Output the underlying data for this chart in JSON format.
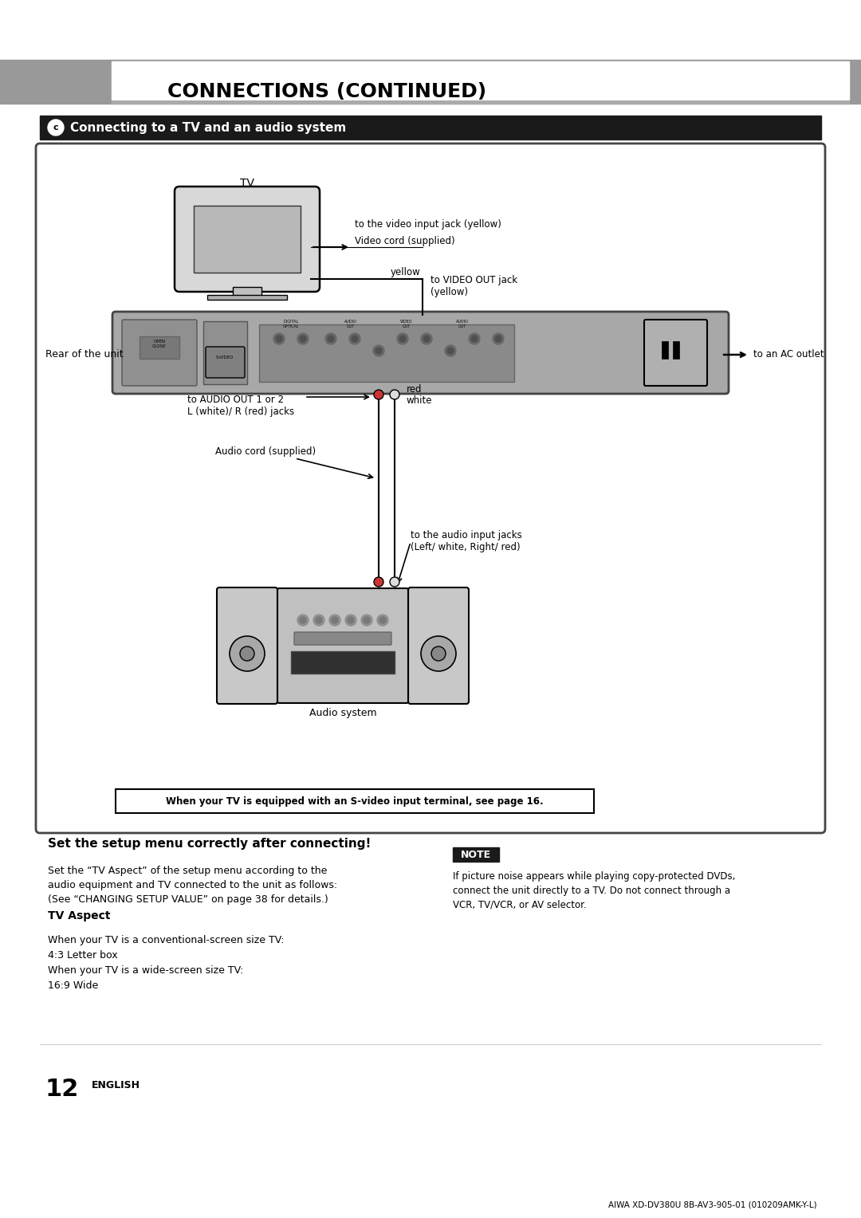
{
  "bg_color": "#ffffff",
  "header_bar_color": "#999999",
  "header_text": "CONNECTIONS (CONTINUED)",
  "section_bar_color": "#1a1a1a",
  "section_icon": "c",
  "section_title": "Connecting to a TV and an audio system",
  "section_title_color": "#ffffff",
  "page_number": "12",
  "page_number_label": "ENGLISH",
  "footer_text": "AIWA XD-DV380U 8B-AV3-905-01 (010209AMK-Y-L)",
  "note_box_color": "#1a1a1a",
  "note_text_color": "#ffffff",
  "note_label": "NOTE",
  "bottom_box_text": "When your TV is equipped with an S-video input terminal, see page 16.",
  "set_heading": "Set the setup menu correctly after connecting!",
  "set_body1": "Set the “TV Aspect” of the setup menu according to the\naudio equipment and TV connected to the unit as follows:\n(See “CHANGING SETUP VALUE” on page 38 for details.)",
  "tv_aspect_heading": "TV Aspect",
  "tv_aspect_body": "When your TV is a conventional-screen size TV:\n4:3 Letter box\nWhen your TV is a wide-screen size TV:\n16:9 Wide",
  "note_body": "If picture noise appears while playing copy-protected DVDs,\nconnect the unit directly to a TV. Do not connect through a\nVCR, TV/VCR, or AV selector.",
  "labels": {
    "tv": "TV",
    "to_video_input": "to the video input jack (yellow)",
    "video_cord": "Video cord (supplied)",
    "yellow": "yellow",
    "to_video_out": "to VIDEO OUT jack\n(yellow)",
    "rear_of_unit": "Rear of the unit",
    "to_audio_out": "to AUDIO OUT 1 or 2\nL (white)/ R (red) jacks",
    "audio_cord": "Audio cord (supplied)",
    "red": "red",
    "white": "white",
    "to_ac_outlet": "to an AC outlet",
    "to_audio_input": "to the audio input jacks\n(Left/ white, Right/ red)",
    "audio_system": "Audio system"
  }
}
